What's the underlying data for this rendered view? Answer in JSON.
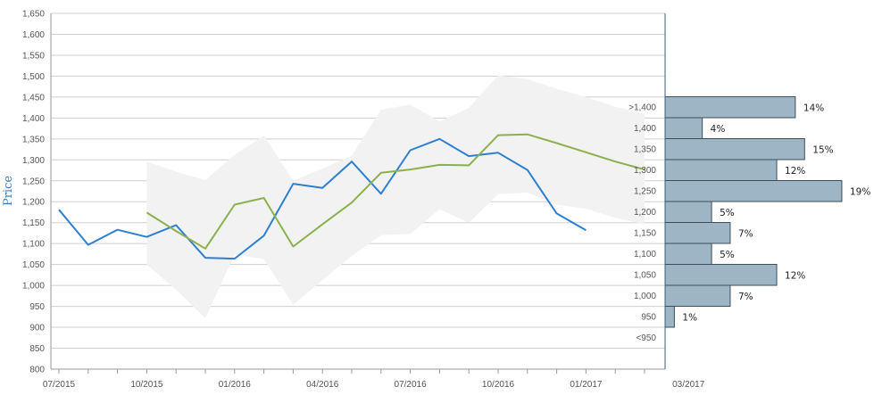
{
  "chart_data": [
    {
      "type": "line",
      "title": "",
      "ylabel": "Price",
      "xlabel": "",
      "ylim": [
        800,
        1650
      ],
      "y_ticks": [
        "1,650",
        "1,600",
        "1,550",
        "1,500",
        "1,450",
        "1,400",
        "1,350",
        "1,300",
        "1,250",
        "1,200",
        "1,150",
        "1,100",
        "1,050",
        "1,000",
        "950",
        "900",
        "850",
        "800"
      ],
      "x_ticks": [
        "07/2015",
        "10/2015",
        "01/2016",
        "04/2016",
        "07/2016",
        "10/2016",
        "01/2017",
        "03/2017"
      ],
      "grid": true,
      "x": [
        "07/2015",
        "08/2015",
        "09/2015",
        "10/2015",
        "11/2015",
        "12/2015",
        "01/2016",
        "02/2016",
        "03/2016",
        "04/2016",
        "05/2016",
        "06/2016",
        "07/2016",
        "08/2016",
        "09/2016",
        "10/2016",
        "11/2016",
        "12/2016",
        "01/2017",
        "02/2017",
        "03/2017"
      ],
      "series": [
        {
          "color": "#2e7fd0",
          "values": [
            1181,
            1097,
            1133,
            1116,
            1144,
            1066,
            1064,
            1119,
            1243,
            1233,
            1296,
            1219,
            1323,
            1350,
            1309,
            1317,
            1276,
            1172,
            1132,
            null,
            null
          ]
        },
        {
          "color": "#8cb04e",
          "values": [
            null,
            null,
            null,
            1174,
            1130,
            1088,
            1193,
            1209,
            1093,
            1146,
            1198,
            1269,
            1277,
            1288,
            1287,
            1359,
            1361,
            1340,
            1318,
            1296,
            1277
          ]
        },
        {
          "type": "area-band",
          "color": "#f2f2f2",
          "upper": [
            null,
            null,
            null,
            1296,
            1272,
            1252,
            1312,
            1358,
            1250,
            1279,
            1310,
            1420,
            1432,
            1392,
            1424,
            1502,
            1493,
            1470,
            1450,
            1427,
            1410
          ],
          "lower": [
            null,
            null,
            null,
            1050,
            990,
            922,
            1074,
            1063,
            953,
            1013,
            1070,
            1120,
            1123,
            1182,
            1150,
            1218,
            1222,
            1193,
            1183,
            1162,
            1146
          ]
        }
      ]
    },
    {
      "type": "bar",
      "orientation": "horizontal",
      "categories": [
        ">1,400",
        "1,400",
        "1,350",
        "1,300",
        "1,250",
        "1,200",
        "1,150",
        "1,100",
        "1,050",
        "1,000",
        "950",
        "<950"
      ],
      "values": [
        14,
        4,
        15,
        12,
        19,
        5,
        7,
        5,
        12,
        7,
        1,
        null
      ],
      "labels": [
        "14%",
        "4%",
        "15%",
        "12%",
        "19%",
        "5%",
        "7%",
        "5%",
        "12%",
        "7%",
        "1%",
        ""
      ],
      "bar_color": "#9db5c4",
      "xlim": [
        0,
        19
      ]
    }
  ]
}
